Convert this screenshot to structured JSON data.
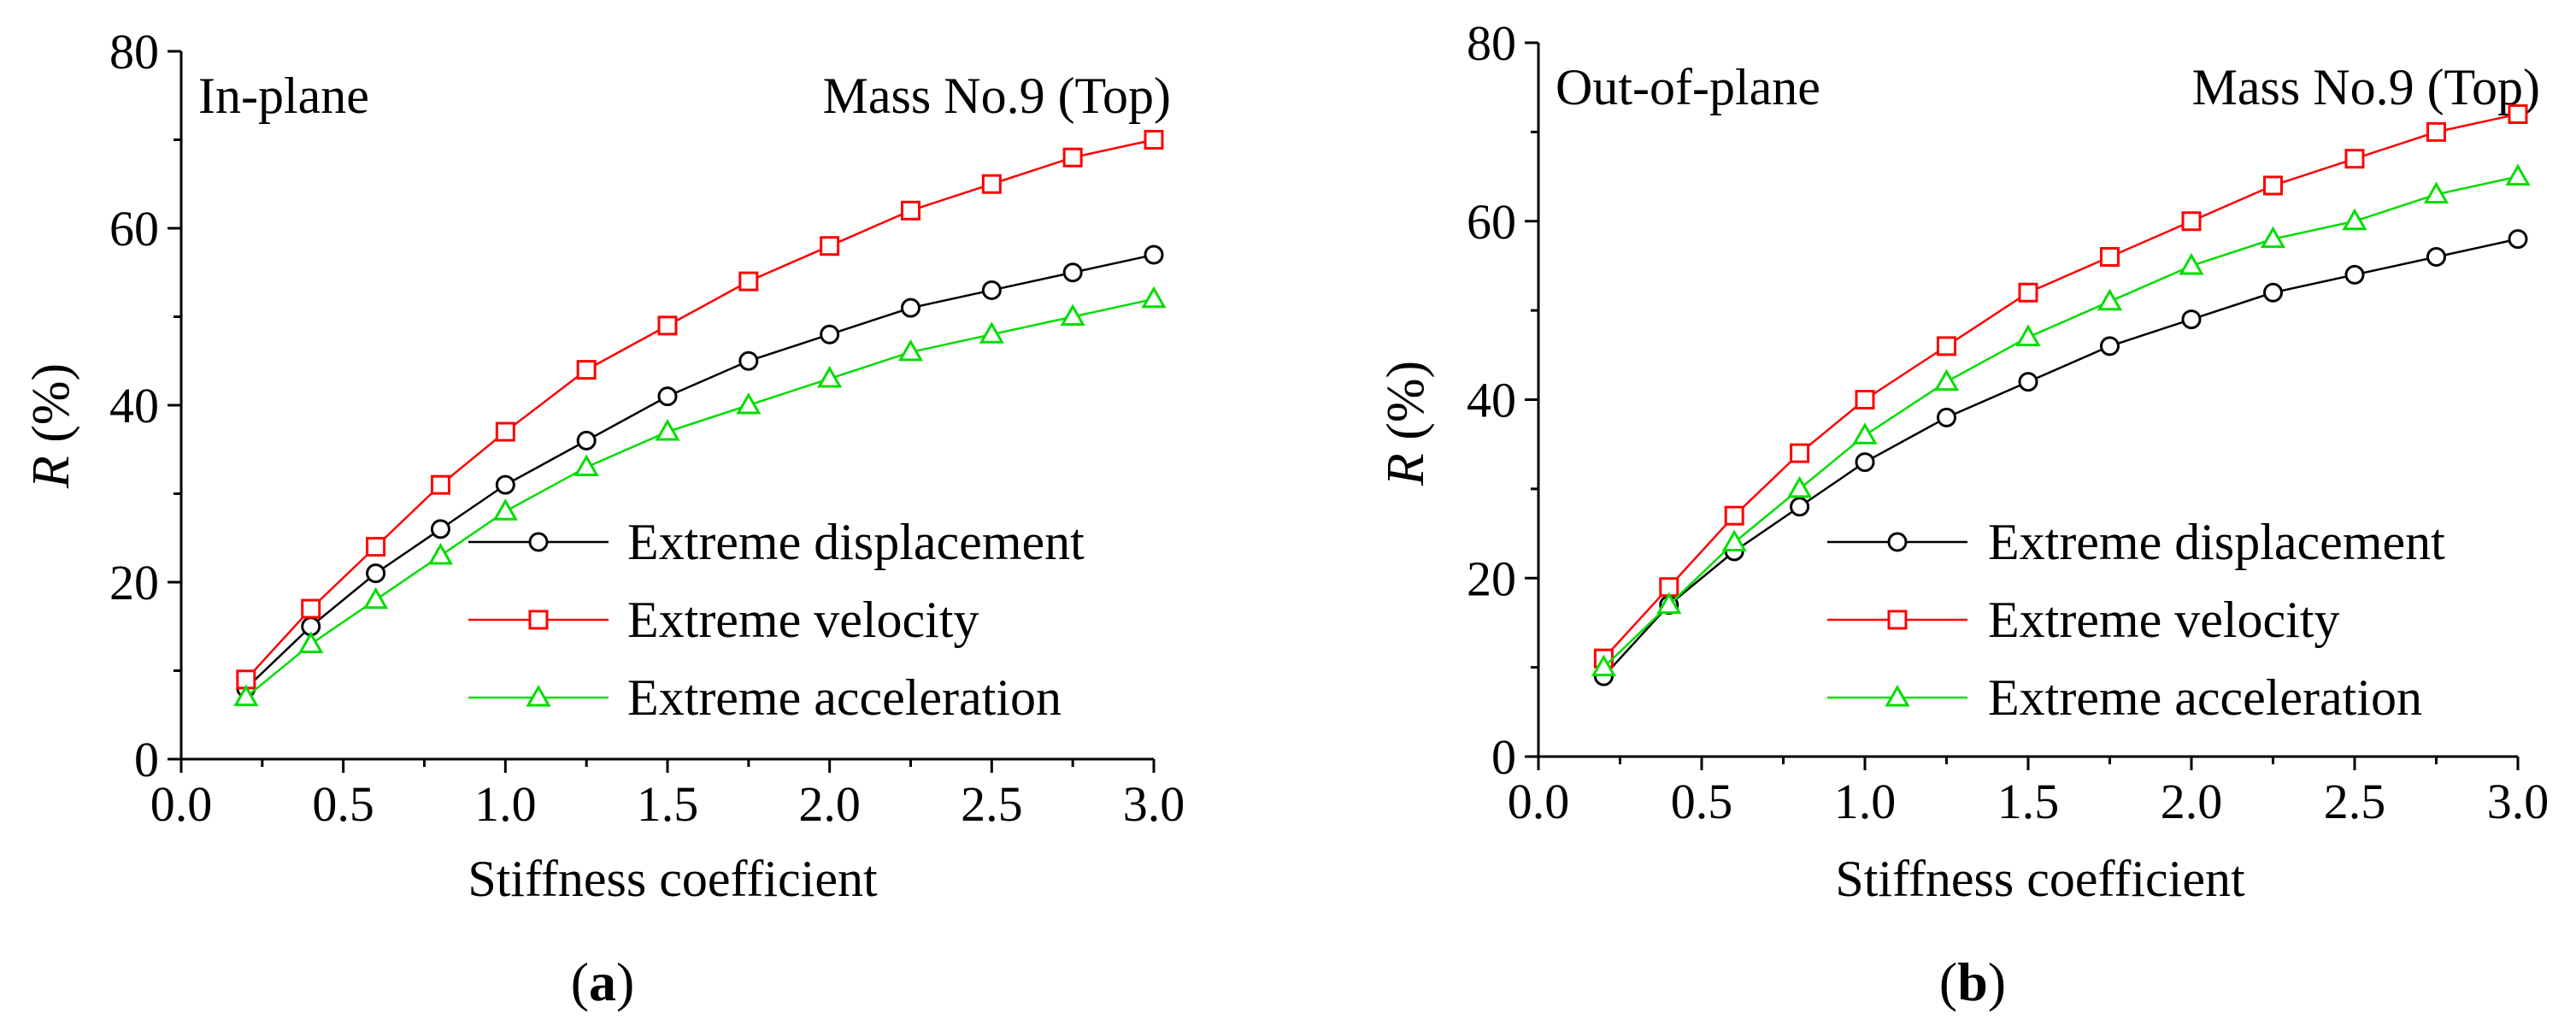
{
  "figure": {
    "panel_labels": [
      "a",
      "b"
    ]
  },
  "chart_data": [
    {
      "type": "line",
      "panel": "a",
      "title_left": "In-plane",
      "title_right": "Mass No.9 (Top)",
      "xlabel": "Stiffness coefficient",
      "ylabel_var": "R",
      "ylabel_unit": " (%)",
      "xlim": [
        0.0,
        3.0
      ],
      "ylim": [
        0,
        80
      ],
      "xticks": [
        "0.0",
        "0.5",
        "1.0",
        "1.5",
        "2.0",
        "2.5",
        "3.0"
      ],
      "yticks": [
        "0",
        "20",
        "40",
        "60",
        "80"
      ],
      "x": [
        0.2,
        0.4,
        0.6,
        0.8,
        1.0,
        1.25,
        1.5,
        1.75,
        2.0,
        2.25,
        2.5,
        2.75,
        3.0
      ],
      "legend_position": "middle-right",
      "series": [
        {
          "name": "Extreme displacement",
          "color": "#000000",
          "marker": "circle",
          "values": [
            8,
            15,
            21,
            26,
            31,
            36,
            41,
            45,
            48,
            51,
            53,
            55,
            57
          ]
        },
        {
          "name": "Extreme velocity",
          "color": "#ff0000",
          "marker": "square",
          "values": [
            9,
            17,
            24,
            31,
            37,
            44,
            49,
            54,
            58,
            62,
            65,
            68,
            70
          ]
        },
        {
          "name": "Extreme acceleration",
          "color": "#00dd00",
          "marker": "triangle",
          "values": [
            7,
            13,
            18,
            23,
            28,
            33,
            37,
            40,
            43,
            46,
            48,
            50,
            52
          ]
        }
      ]
    },
    {
      "type": "line",
      "panel": "b",
      "title_left": "Out-of-plane",
      "title_right": "Mass No.9 (Top)",
      "xlabel": "Stiffness coefficient",
      "ylabel_var": "R",
      "ylabel_unit": " (%)",
      "xlim": [
        0.0,
        3.0
      ],
      "ylim": [
        0,
        80
      ],
      "xticks": [
        "0.0",
        "0.5",
        "1.0",
        "1.5",
        "2.0",
        "2.5",
        "3.0"
      ],
      "yticks": [
        "0",
        "20",
        "40",
        "60",
        "80"
      ],
      "x": [
        0.2,
        0.4,
        0.6,
        0.8,
        1.0,
        1.25,
        1.5,
        1.75,
        2.0,
        2.25,
        2.5,
        2.75,
        3.0
      ],
      "legend_position": "middle-right",
      "series": [
        {
          "name": "Extreme displacement",
          "color": "#000000",
          "marker": "circle",
          "values": [
            9,
            17,
            23,
            28,
            33,
            38,
            42,
            46,
            49,
            52,
            54,
            56,
            58
          ]
        },
        {
          "name": "Extreme velocity",
          "color": "#ff0000",
          "marker": "square",
          "values": [
            11,
            19,
            27,
            34,
            40,
            46,
            52,
            56,
            60,
            64,
            67,
            70,
            72
          ]
        },
        {
          "name": "Extreme acceleration",
          "color": "#00dd00",
          "marker": "triangle",
          "values": [
            10,
            17,
            24,
            30,
            36,
            42,
            47,
            51,
            55,
            58,
            60,
            63,
            65
          ]
        }
      ]
    }
  ]
}
